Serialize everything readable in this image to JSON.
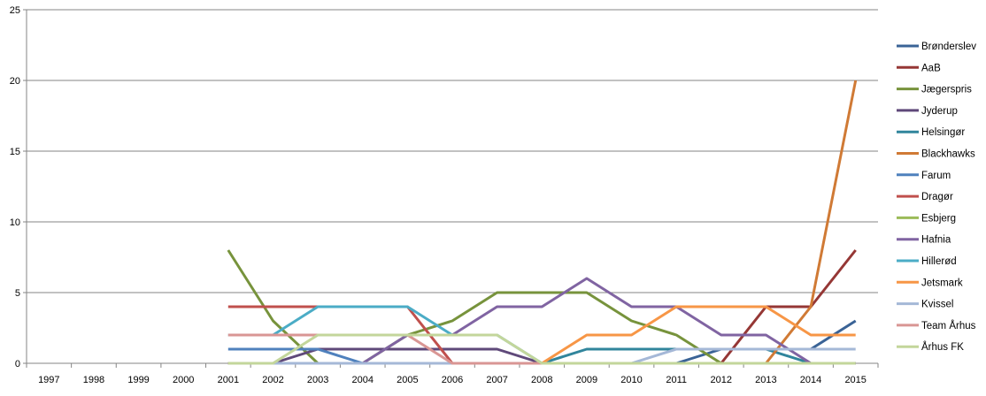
{
  "chart_data": {
    "type": "line",
    "title": "",
    "xlabel": "",
    "ylabel": "",
    "ylim": [
      0,
      25
    ],
    "yticks": [
      0,
      5,
      10,
      15,
      20,
      25
    ],
    "grid": true,
    "legend_position": "right",
    "categories": [
      "1997",
      "1998",
      "1999",
      "2000",
      "2001",
      "2002",
      "2003",
      "2004",
      "2005",
      "2006",
      "2007",
      "2008",
      "2009",
      "2010",
      "2011",
      "2012",
      "2013",
      "2014",
      "2015"
    ],
    "series": [
      {
        "name": "Brønderslev",
        "color": "#3A6396",
        "values": [
          null,
          null,
          null,
          null,
          0,
          0,
          0,
          0,
          0,
          0,
          0,
          0,
          0,
          0,
          0,
          1,
          1,
          1,
          3
        ]
      },
      {
        "name": "AaB",
        "color": "#953735",
        "values": [
          null,
          null,
          null,
          null,
          0,
          0,
          0,
          0,
          0,
          0,
          0,
          0,
          0,
          0,
          0,
          0,
          4,
          4,
          8
        ]
      },
      {
        "name": "Jægerspris",
        "color": "#77933C",
        "values": [
          null,
          null,
          null,
          null,
          8,
          3,
          0,
          0,
          2,
          3,
          5,
          5,
          5,
          3,
          2,
          0,
          0,
          0,
          0
        ]
      },
      {
        "name": "Jyderup",
        "color": "#5F497A",
        "values": [
          null,
          null,
          null,
          null,
          0,
          0,
          1,
          1,
          1,
          1,
          1,
          0,
          0,
          0,
          0,
          0,
          0,
          0,
          0
        ]
      },
      {
        "name": "Helsingør",
        "color": "#31859C",
        "values": [
          null,
          null,
          null,
          null,
          0,
          0,
          0,
          0,
          0,
          0,
          0,
          0,
          1,
          1,
          1,
          1,
          1,
          0,
          0
        ]
      },
      {
        "name": "Blackhawks",
        "color": "#D07A35",
        "values": [
          null,
          null,
          null,
          null,
          0,
          0,
          0,
          0,
          0,
          0,
          0,
          0,
          0,
          0,
          0,
          0,
          0,
          4,
          20
        ]
      },
      {
        "name": "Farum",
        "color": "#4F81BD",
        "values": [
          null,
          null,
          null,
          null,
          1,
          1,
          1,
          0,
          0,
          0,
          0,
          0,
          0,
          0,
          0,
          0,
          0,
          0,
          0
        ]
      },
      {
        "name": "Dragør",
        "color": "#C0504D",
        "values": [
          null,
          null,
          null,
          null,
          4,
          4,
          4,
          4,
          4,
          0,
          0,
          0,
          0,
          0,
          0,
          0,
          0,
          0,
          0
        ]
      },
      {
        "name": "Esbjerg",
        "color": "#9BBB59",
        "values": [
          null,
          null,
          null,
          null,
          0,
          0,
          0,
          0,
          0,
          0,
          0,
          0,
          0,
          0,
          0,
          0,
          0,
          0,
          0
        ]
      },
      {
        "name": "Hafnia",
        "color": "#8064A2",
        "values": [
          null,
          null,
          null,
          null,
          0,
          0,
          0,
          0,
          2,
          2,
          4,
          4,
          6,
          4,
          4,
          2,
          2,
          0,
          0
        ]
      },
      {
        "name": "Hillerød",
        "color": "#4BACC6",
        "values": [
          null,
          null,
          null,
          null,
          2,
          2,
          4,
          4,
          4,
          2,
          2,
          0,
          0,
          0,
          0,
          0,
          0,
          0,
          0
        ]
      },
      {
        "name": "Jetsmark",
        "color": "#F79646",
        "values": [
          null,
          null,
          null,
          null,
          0,
          0,
          0,
          0,
          0,
          0,
          0,
          0,
          2,
          2,
          4,
          4,
          4,
          2,
          2
        ]
      },
      {
        "name": "Kvissel",
        "color": "#A5B8D7",
        "values": [
          null,
          null,
          null,
          null,
          0,
          0,
          0,
          0,
          0,
          0,
          0,
          0,
          0,
          0,
          1,
          1,
          1,
          1,
          1
        ]
      },
      {
        "name": "Team Århus",
        "color": "#D99694",
        "values": [
          null,
          null,
          null,
          null,
          2,
          2,
          2,
          2,
          2,
          0,
          0,
          0,
          0,
          0,
          0,
          0,
          0,
          0,
          0
        ]
      },
      {
        "name": "Århus FK",
        "color": "#C3D69B",
        "values": [
          null,
          null,
          null,
          null,
          0,
          0,
          2,
          2,
          2,
          2,
          2,
          0,
          0,
          0,
          0,
          0,
          0,
          0,
          0
        ]
      }
    ]
  }
}
